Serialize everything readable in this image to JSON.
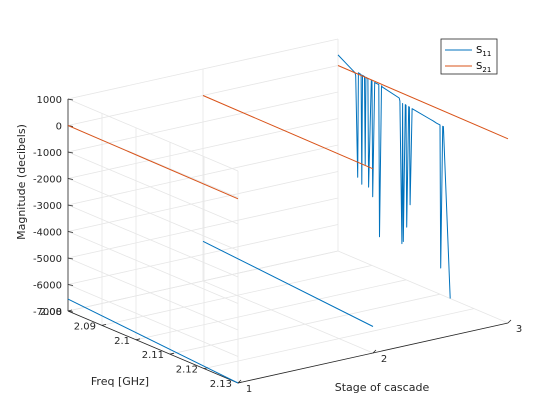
{
  "chart_data": {
    "type": "line",
    "view": "3d",
    "title": "",
    "xlabel": "Stage of cascade",
    "ylabel": "Freq [GHz]",
    "zlabel": "Magnitude (decibels)",
    "x_ticks": [
      "1",
      "2",
      "3"
    ],
    "y_ticks": [
      "2.08",
      "2.09",
      "2.1",
      "2.11",
      "2.12",
      "2.13"
    ],
    "z_ticks": [
      "1000",
      "0",
      "-1000",
      "-2000",
      "-3000",
      "-4000",
      "-5000",
      "-6000",
      "-7000"
    ],
    "xlim": [
      1,
      3
    ],
    "ylim": [
      2.08,
      2.13
    ],
    "zlim": [
      -7000,
      1000
    ],
    "grid": true,
    "legend_position": "top-right",
    "series": [
      {
        "name": "S",
        "subscript": "11",
        "color": "#0072BD",
        "lines": [
          {
            "stage": 1,
            "freq": [
              2.08,
              2.13
            ],
            "mag": [
              -6550,
              -7000
            ]
          },
          {
            "stage": 2,
            "freq": [
              2.08,
              2.13
            ],
            "mag": [
              -5500,
              -6000
            ]
          },
          {
            "stage": 3,
            "freq": [
              2.08,
              2.0825,
              2.085,
              2.0852,
              2.0858,
              2.086,
              2.0868,
              2.087,
              2.0872,
              2.0878,
              2.088,
              2.0882,
              2.0888,
              2.089,
              2.0898,
              2.09,
              2.0902,
              2.0908,
              2.091,
              2.092,
              2.0922,
              2.0928,
              2.093,
              2.098,
              2.0982,
              2.0988,
              2.099,
              2.0992,
              2.0998,
              2.1,
              2.1002,
              2.1008,
              2.101,
              2.1012,
              2.1018,
              2.102,
              2.107,
              2.108,
              2.109,
              2.11,
              2.1102,
              2.1108,
              2.111,
              2.113
            ],
            "mag": [
              400,
              200,
              0,
              -100,
              -3900,
              50,
              30,
              -4100,
              20,
              10,
              -3300,
              0,
              -20,
              -4100,
              -30,
              -50,
              -4400,
              -50,
              -60,
              -70,
              -5800,
              -70,
              -100,
              -250,
              -350,
              -5700,
              -400,
              -5600,
              -400,
              -410,
              -5000,
              -420,
              -430,
              -4100,
              -440,
              -450,
              -550,
              -570,
              -600,
              -610,
              -6000,
              -620,
              -620,
              -7000
            ]
          }
        ]
      },
      {
        "name": "S",
        "subscript": "21",
        "color": "#D95319",
        "lines": [
          {
            "stage": 1,
            "freq": [
              2.08,
              2.13
            ],
            "mag": [
              0,
              -50
            ]
          },
          {
            "stage": 2,
            "freq": [
              2.08,
              2.13
            ],
            "mag": [
              0,
              -50
            ]
          },
          {
            "stage": 3,
            "freq": [
              2.08,
              2.13
            ],
            "mag": [
              0,
              -50
            ]
          }
        ]
      }
    ]
  }
}
